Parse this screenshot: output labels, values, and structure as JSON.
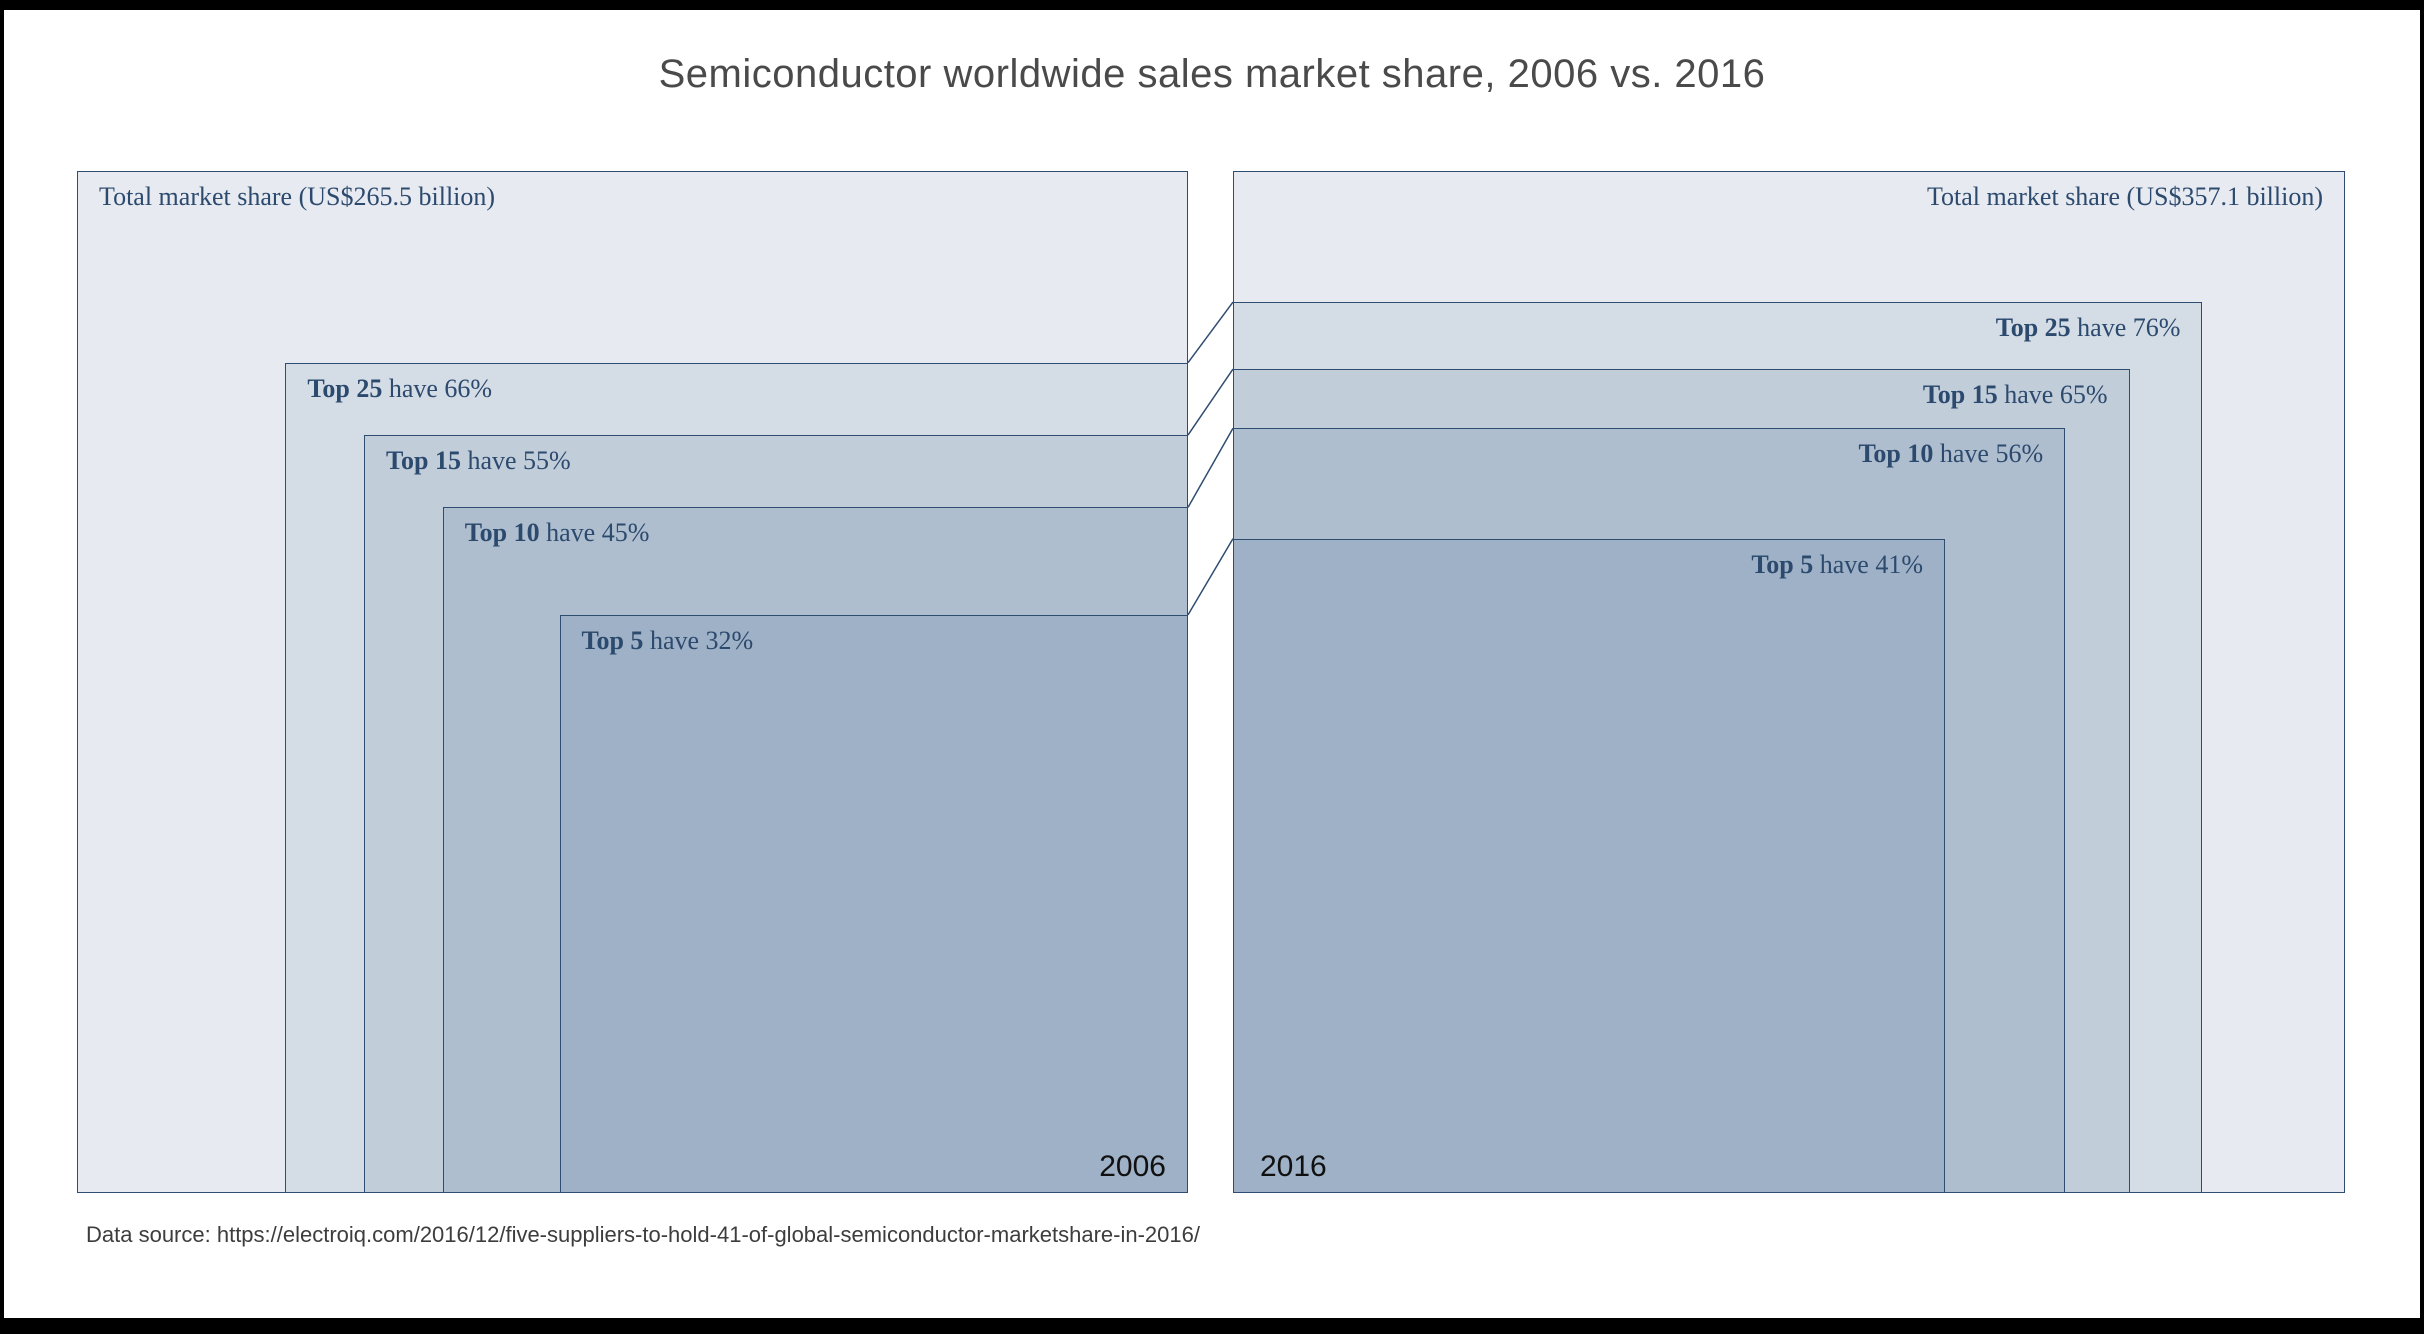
{
  "title": "Semiconductor worldwide sales market share, 2006 vs. 2016",
  "footer": {
    "data_source": "Data source: https://electroiq.com/2016/12/five-suppliers-to-hold-41-of-global-semiconductor-marketshare-in-2016/"
  },
  "colors": {
    "border": "#2f4d70",
    "label_text": "#2c4a6e",
    "title_text": "#4a4a4a",
    "year_text": "#101010",
    "level_fills": [
      "#e7eaf0",
      "#d4dce6",
      "#c2cdda",
      "#afbecf",
      "#9eb1c6"
    ]
  },
  "chart_data": {
    "type": "nested-rectangle area comparison",
    "title": "Semiconductor worldwide sales market share, 2006 vs. 2016",
    "unit": "percent of worldwide semiconductor sales (rectangle area proportional to share)",
    "legend_position": "labels inside rectangles",
    "charts": [
      {
        "year": "2006",
        "total_label": "Total market share (US$265.5 billion)",
        "total_usd_billion": 265.5,
        "anchor": "bottom-right",
        "levels": [
          {
            "group": "Top 25",
            "share_pct": 66,
            "label_bold": "Top 25",
            "label_rest": " have 66%"
          },
          {
            "group": "Top 15",
            "share_pct": 55,
            "label_bold": "Top 15",
            "label_rest": " have 55%"
          },
          {
            "group": "Top 10",
            "share_pct": 45,
            "label_bold": "Top 10",
            "label_rest": " have 45%"
          },
          {
            "group": "Top 5",
            "share_pct": 32,
            "label_bold": "Top 5",
            "label_rest": " have 32%"
          }
        ]
      },
      {
        "year": "2016",
        "total_label": "Total market share (US$357.1 billion)",
        "total_usd_billion": 357.1,
        "anchor": "bottom-left",
        "levels": [
          {
            "group": "Top 25",
            "share_pct": 76,
            "label_bold": "Top 25",
            "label_rest": " have 76%"
          },
          {
            "group": "Top 15",
            "share_pct": 65,
            "label_bold": "Top 15",
            "label_rest": " have 65%"
          },
          {
            "group": "Top 10",
            "share_pct": 56,
            "label_bold": "Top 10",
            "label_rest": " have 56%"
          },
          {
            "group": "Top 5",
            "share_pct": 41,
            "label_bold": "Top 5",
            "label_rest": " have 41%"
          }
        ]
      }
    ]
  }
}
